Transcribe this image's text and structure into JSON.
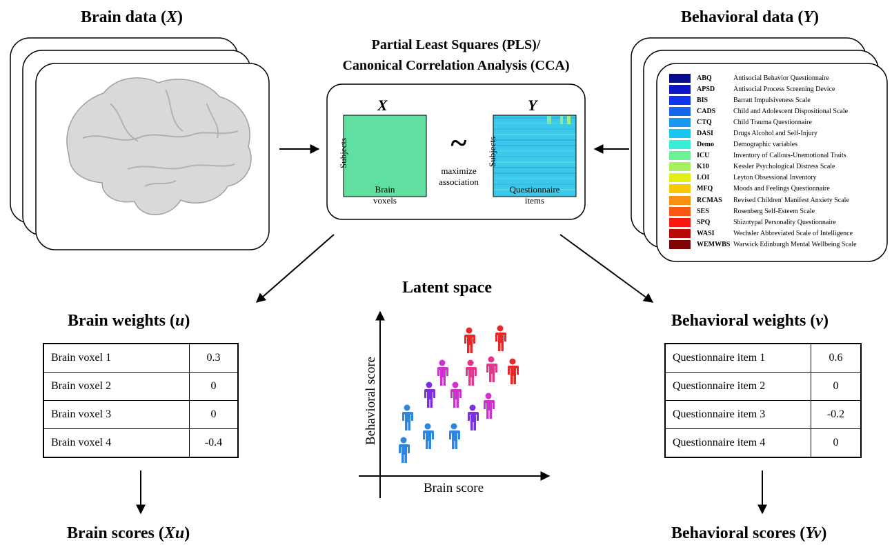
{
  "headings": {
    "brain_data": {
      "text": "Brain data (",
      "var": "X",
      "close": ")"
    },
    "behavioral_data": {
      "text": "Behavioral data (",
      "var": "Y",
      "close": ")"
    },
    "pls_line1": "Partial Least Squares (PLS)/",
    "pls_line2": "Canonical Correlation Analysis (CCA)",
    "latent_space": "Latent space",
    "brain_weights": {
      "text": "Brain weights (",
      "var": "u",
      "close": ")"
    },
    "behavioral_weights": {
      "text": "Behavioral weights (",
      "var": "v",
      "close": ")"
    },
    "brain_scores": {
      "text": "Brain scores (",
      "var": "Xu",
      "close": ")"
    },
    "behavioral_scores": {
      "text": "Behavioral scores (",
      "var": "Yv",
      "close": ")"
    }
  },
  "matrix": {
    "x_letter": "X",
    "y_letter": "Y",
    "subjects_label": "Subjects",
    "x_caption_1": "Brain",
    "x_caption_2": "voxels",
    "y_caption_1": "Questionnaire",
    "y_caption_2": "items",
    "tilde": "~",
    "maximize_1": "maximize",
    "maximize_2": "association",
    "x_color": "#5fe0a0",
    "y_color": "#3cc8e8"
  },
  "questionnaires": [
    {
      "abbr": "ABQ",
      "name": "Antisocial Behavior Questionnaire",
      "color": "#0a0a8c"
    },
    {
      "abbr": "APSD",
      "name": "Antisocial Process Screening Device",
      "color": "#0c16c8"
    },
    {
      "abbr": "BIS",
      "name": "Barratt Impulsiveness Scale",
      "color": "#1034f0"
    },
    {
      "abbr": "CADS",
      "name": "Child and Adolescent Dispositional Scale",
      "color": "#1464ee"
    },
    {
      "abbr": "CTQ",
      "name": "Child Trauma Questionnaire",
      "color": "#1a98f0"
    },
    {
      "abbr": "DASI",
      "name": "Drugs Alcohol and Self-Injury",
      "color": "#18c8f0"
    },
    {
      "abbr": "Demo",
      "name": "Demographic variables",
      "color": "#38f0d8"
    },
    {
      "abbr": "ICU",
      "name": "Inventory of Callous-Unemotional Traits",
      "color": "#6ef098"
    },
    {
      "abbr": "K10",
      "name": "Kessler Psychological Distress Scale",
      "color": "#a8f060"
    },
    {
      "abbr": "LOI",
      "name": "Leyton Obsessional Inventory",
      "color": "#e0f010"
    },
    {
      "abbr": "MFQ",
      "name": "Moods and Feelings Questionnaire",
      "color": "#f8c800"
    },
    {
      "abbr": "RCMAS",
      "name": "Revised Children' Manifest Anxiety Scale",
      "color": "#f89010"
    },
    {
      "abbr": "SES",
      "name": "Rosenberg Self-Esteem Scale",
      "color": "#f85810"
    },
    {
      "abbr": "SPQ",
      "name": "Shizotypal Personality Questionnaire",
      "color": "#f81810"
    },
    {
      "abbr": "WASI",
      "name": "Wechsler Abbreviated Scale of Intelligence",
      "color": "#b80808"
    },
    {
      "abbr": "WEMWBS",
      "name": "Warwick Edinburgh Mental Wellbeing Scale",
      "color": "#7c0404"
    }
  ],
  "brain_weights_table": [
    {
      "label": "Brain voxel 1",
      "value": "0.3"
    },
    {
      "label": "Brain voxel 2",
      "value": "0"
    },
    {
      "label": "Brain voxel 3",
      "value": "0"
    },
    {
      "label": "Brain voxel 4",
      "value": "-0.4"
    }
  ],
  "behavioral_weights_table": [
    {
      "label": "Questionnaire item 1",
      "value": "0.6"
    },
    {
      "label": "Questionnaire item 2",
      "value": "0"
    },
    {
      "label": "Questionnaire item 3",
      "value": "-0.2"
    },
    {
      "label": "Questionnaire item 4",
      "value": "0"
    }
  ],
  "latent": {
    "x_axis_label": "Brain score",
    "y_axis_label": "Behavioral score",
    "point_colors": {
      "blue": "#2e86de",
      "purple": "#7b2fe0",
      "magenta": "#d030d0",
      "pink": "#e8348c",
      "red": "#e82828"
    }
  }
}
